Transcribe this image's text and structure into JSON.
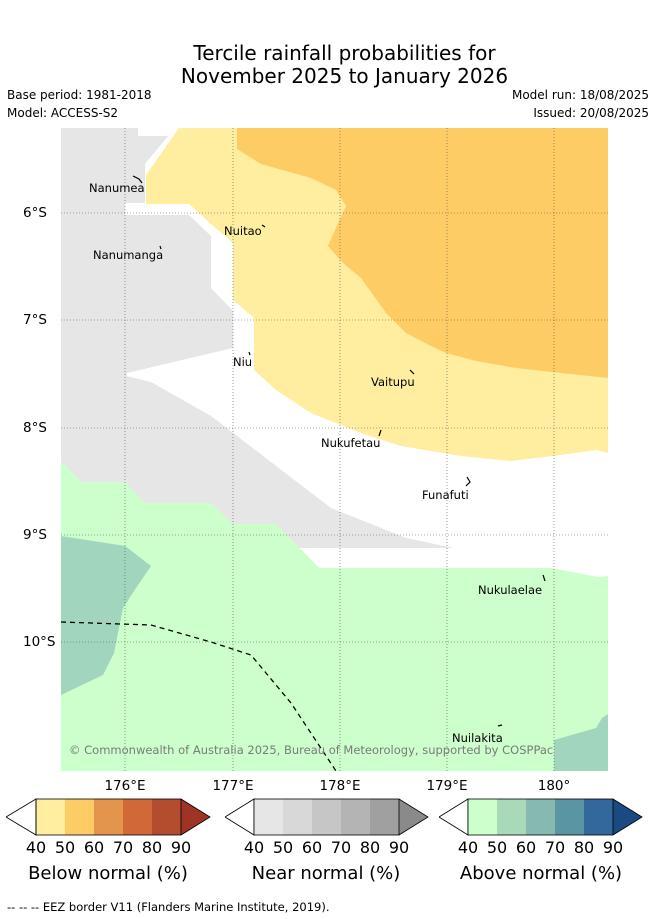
{
  "title": {
    "line1": "Tercile rainfall probabilities for",
    "line2": "November 2025 to January 2026"
  },
  "meta": {
    "base_period": "Base period: 1981-2018",
    "model": "Model: ACCESS-S2",
    "model_run": "Model run: 18/08/2025",
    "issued": "Issued: 20/08/2025"
  },
  "map": {
    "copyright": "© Commonwealth of Australia 2025, Bureau of Meteorology, supported by COSPPac",
    "islands": [
      "Nanumea",
      "Nuitao",
      "Nanumanga",
      "Niu",
      "Vaitupu",
      "Nukufetau",
      "Funafuti",
      "Nukulaelae",
      "Nuilakita"
    ],
    "lat_labels": [
      "6°S",
      "7°S",
      "8°S",
      "9°S",
      "10°S"
    ],
    "lon_labels": [
      "176°E",
      "177°E",
      "178°E",
      "179°E",
      "180°"
    ],
    "colors": {
      "below_40": "#ffeda0",
      "below_50": "#fecc65",
      "near_40": "#e6e6e6",
      "above_40": "#ccffcc",
      "above_50": "#a1d5bd"
    }
  },
  "legend": {
    "ticks": [
      "40",
      "50",
      "60",
      "70",
      "80",
      "90"
    ],
    "below": {
      "title": "Below normal (%)",
      "colors": [
        "#ffeda0",
        "#fecc65",
        "#e3944d",
        "#d06837",
        "#b34d2e",
        "#9e3426"
      ]
    },
    "near": {
      "title": "Near normal (%)",
      "colors": [
        "#e6e6e6",
        "#d8d8d8",
        "#c6c6c6",
        "#b4b4b4",
        "#a0a0a0",
        "#8a8a8a"
      ]
    },
    "above": {
      "title": "Above normal (%)",
      "colors": [
        "#ccffcc",
        "#a8d9b8",
        "#86b9b0",
        "#5a95a3",
        "#33689c",
        "#1b4a82"
      ]
    }
  },
  "eez_note": "--  --  -- EEZ border V11 (Flanders Marine Institute, 2019)."
}
